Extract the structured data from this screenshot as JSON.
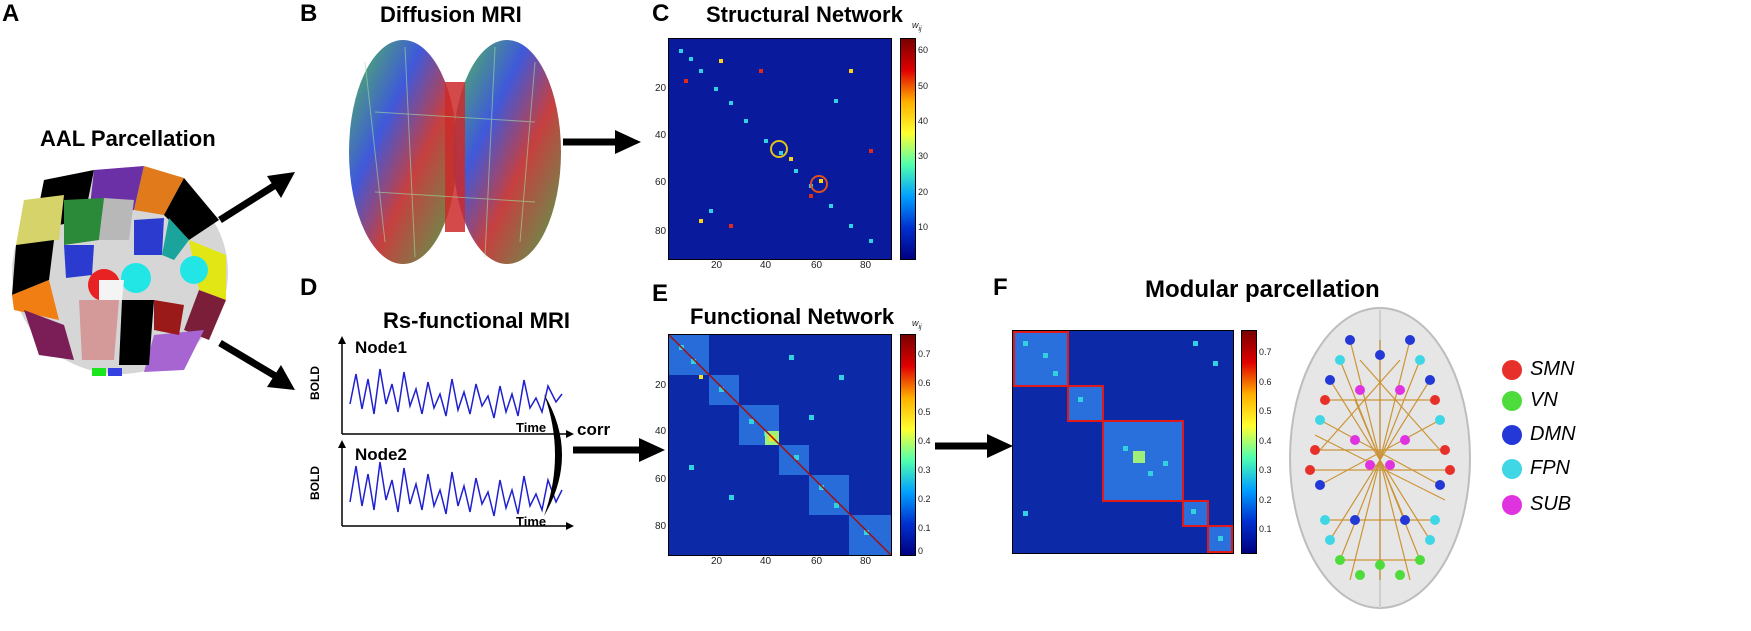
{
  "panels": {
    "A": {
      "letter": "A",
      "title": "AAL Parcellation"
    },
    "B": {
      "letter": "B",
      "title": "Diffusion MRI"
    },
    "C": {
      "letter": "C",
      "title": "Structural Network",
      "cbar_label": "w",
      "cbar_sub": "ij",
      "cbar_ticks": [
        "60",
        "50",
        "40",
        "30",
        "20",
        "10"
      ],
      "x_ticks": [
        "20",
        "40",
        "60",
        "80"
      ],
      "y_ticks": [
        "20",
        "40",
        "60",
        "80"
      ]
    },
    "D": {
      "letter": "D",
      "title": "Rs-functional MRI",
      "node1": "Node1",
      "node2": "Node2",
      "ylabel": "BOLD",
      "xlabel": "Time",
      "corr": "corr"
    },
    "E": {
      "letter": "E",
      "title": "Functional Network",
      "cbar_label": "w",
      "cbar_sub": "ij",
      "cbar_ticks": [
        "0.7",
        "0.6",
        "0.5",
        "0.4",
        "0.3",
        "0.2",
        "0.1",
        "0"
      ],
      "x_ticks": [
        "20",
        "40",
        "60",
        "80"
      ],
      "y_ticks": [
        "20",
        "40",
        "60",
        "80"
      ]
    },
    "F": {
      "letter": "F",
      "title": "Modular parcellation",
      "cbar_ticks": [
        "0.7",
        "0.6",
        "0.5",
        "0.4",
        "0.3",
        "0.2",
        "0.1"
      ]
    }
  },
  "legend": [
    {
      "label": "SMN",
      "color": "#e8302a"
    },
    {
      "label": "VN",
      "color": "#4ddc3c"
    },
    {
      "label": "DMN",
      "color": "#2438d8"
    },
    {
      "label": "FPN",
      "color": "#3fd6e6"
    },
    {
      "label": "SUB",
      "color": "#e033e0"
    }
  ]
}
